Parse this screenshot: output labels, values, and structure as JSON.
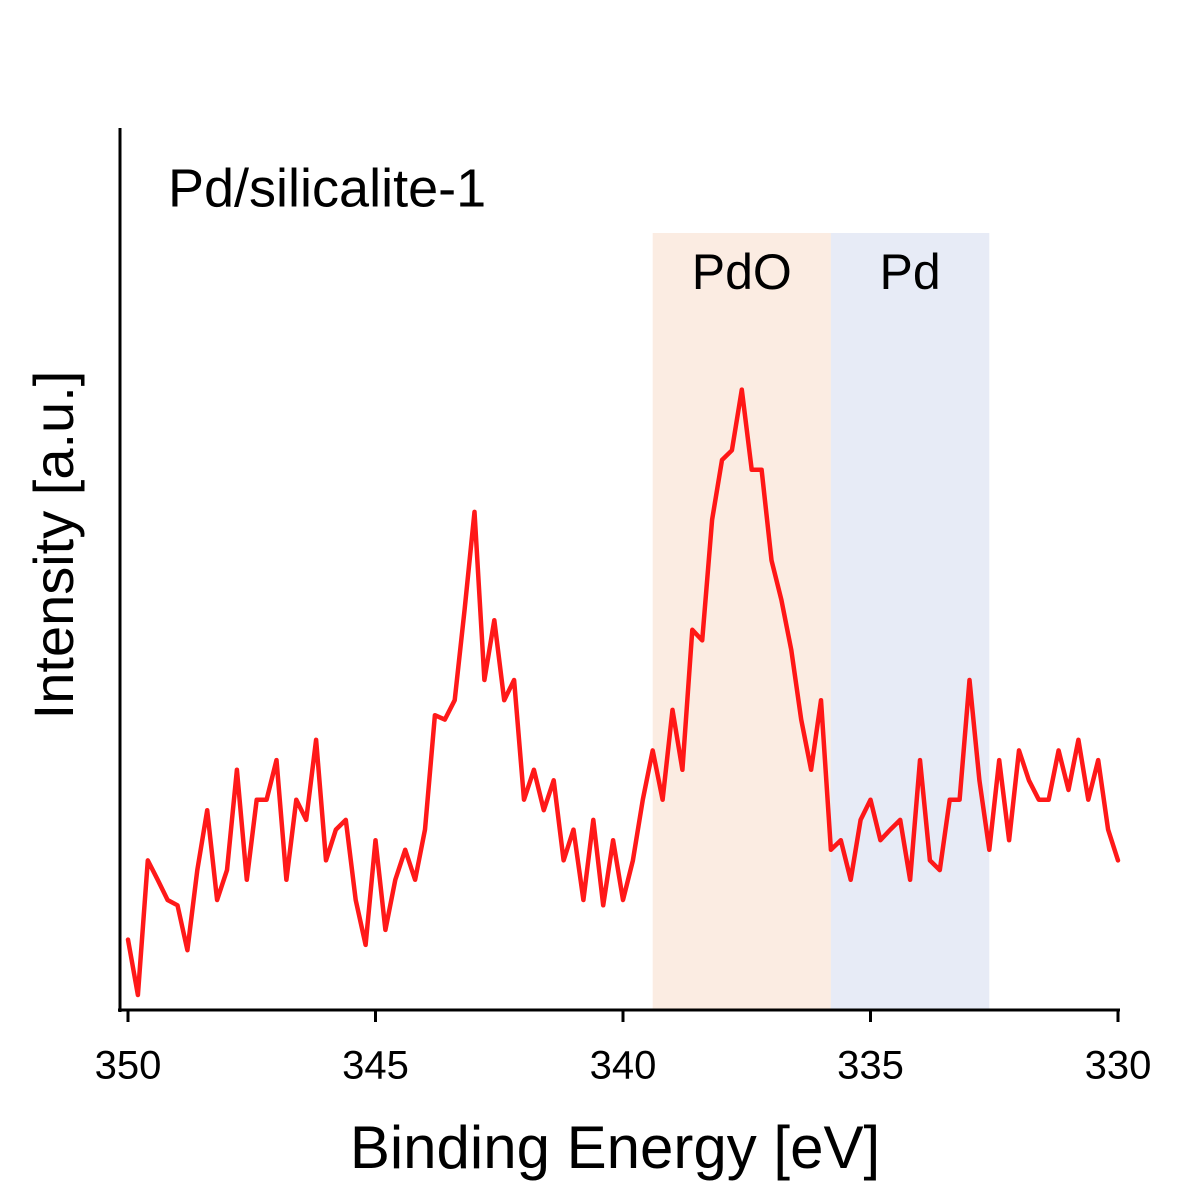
{
  "chart_data": {
    "type": "line",
    "title": "Pd/silicalite-1",
    "x_label": "Binding Energy [eV]",
    "y_label": "Intensity [a.u.]",
    "xlim": [
      350,
      330
    ],
    "xticks": [
      350,
      345,
      340,
      335,
      330
    ],
    "ylim": [
      0,
      100
    ],
    "bands": [
      {
        "label": "PdO",
        "xlim": [
          339.4,
          335.8
        ],
        "color": "#fbece2"
      },
      {
        "label": "Pd",
        "xlim": [
          335.8,
          332.6
        ],
        "color": "#e7ebf6"
      }
    ],
    "x": [
      350.0,
      349.8,
      349.6,
      349.4,
      349.2,
      349.0,
      348.8,
      348.6,
      348.4,
      348.2,
      348.0,
      347.8,
      347.6,
      347.4,
      347.2,
      347.0,
      346.8,
      346.6,
      346.4,
      346.2,
      346.0,
      345.8,
      345.6,
      345.4,
      345.2,
      345.0,
      344.8,
      344.6,
      344.4,
      344.2,
      344.0,
      343.8,
      343.6,
      343.4,
      343.2,
      343.0,
      342.8,
      342.6,
      342.4,
      342.2,
      342.0,
      341.8,
      341.6,
      341.4,
      341.2,
      341.0,
      340.8,
      340.6,
      340.4,
      340.2,
      340.0,
      339.8,
      339.6,
      339.4,
      339.2,
      339.0,
      338.8,
      338.6,
      338.4,
      338.2,
      338.0,
      337.8,
      337.6,
      337.4,
      337.2,
      337.0,
      336.8,
      336.6,
      336.4,
      336.2,
      336.0,
      335.8,
      335.6,
      335.4,
      335.2,
      335.0,
      334.8,
      334.6,
      334.4,
      334.2,
      334.0,
      333.8,
      333.6,
      333.4,
      333.2,
      333.0,
      332.8,
      332.6,
      332.4,
      332.2,
      332.0,
      331.8,
      331.6,
      331.4,
      331.2,
      331.0,
      330.8,
      330.6,
      330.4,
      330.2,
      330.0
    ],
    "series": [
      {
        "color": "#ff0000",
        "values": [
          8.0,
          1.7,
          17.0,
          14.8,
          12.5,
          11.9,
          6.8,
          15.9,
          22.7,
          12.5,
          15.9,
          27.3,
          14.8,
          23.9,
          23.9,
          28.4,
          14.8,
          23.9,
          21.6,
          30.7,
          17.0,
          20.5,
          21.6,
          12.5,
          7.4,
          19.3,
          9.1,
          14.8,
          18.2,
          14.8,
          20.5,
          33.5,
          33.0,
          35.2,
          45.5,
          56.6,
          37.5,
          44.3,
          35.2,
          37.5,
          23.9,
          27.3,
          22.7,
          26.1,
          17.0,
          20.5,
          12.5,
          21.6,
          11.9,
          19.3,
          12.5,
          17.0,
          23.9,
          29.5,
          23.9,
          34.1,
          27.3,
          43.2,
          42.0,
          55.7,
          62.5,
          63.6,
          70.5,
          61.4,
          61.4,
          51.1,
          46.6,
          40.9,
          33.0,
          27.3,
          35.2,
          18.2,
          19.3,
          14.8,
          21.6,
          23.9,
          19.3,
          20.5,
          21.6,
          14.8,
          28.4,
          17.0,
          15.9,
          23.9,
          23.9,
          37.5,
          26.1,
          18.2,
          28.4,
          19.3,
          29.5,
          26.1,
          23.9,
          23.9,
          29.5,
          25.0,
          30.7,
          23.9,
          28.4,
          20.5,
          17.0
        ]
      }
    ]
  }
}
